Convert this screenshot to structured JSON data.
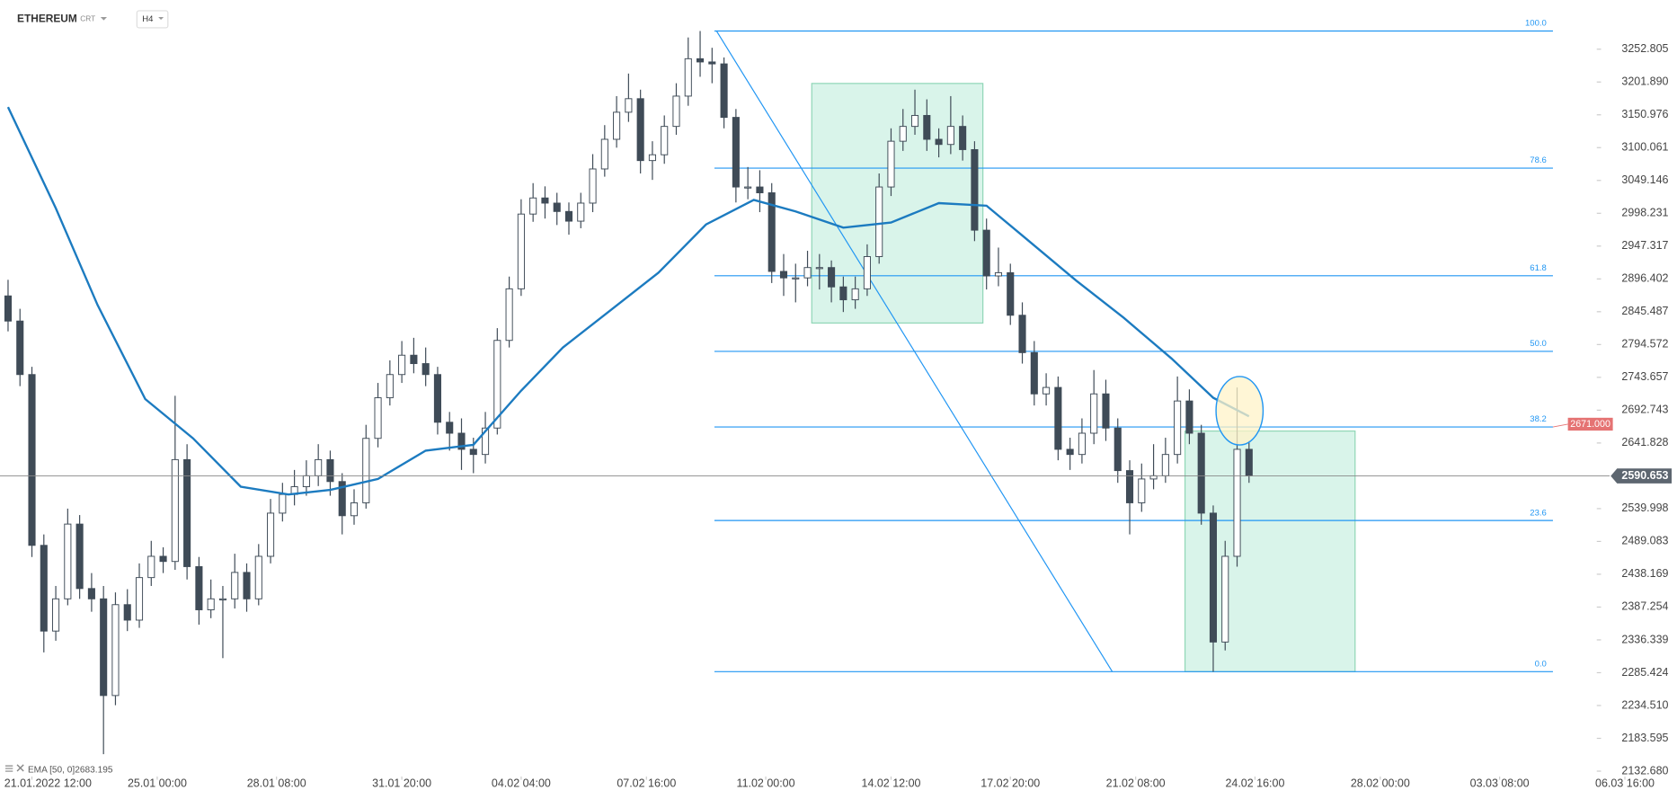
{
  "chart_data": {
    "type": "candlestick",
    "symbol": "ETHEREUM",
    "account": "CRT",
    "interval": "H4",
    "xlim": [
      -21.4,
      1047
    ],
    "ylim": [
      2109.4,
      3329.1
    ],
    "xticks": [
      {
        "value": 0,
        "label": "21.01.2022 12:00"
      },
      {
        "value": 84,
        "label": "25.01 00:00"
      },
      {
        "value": 164,
        "label": "28.01 08:00"
      },
      {
        "value": 248,
        "label": "31.01 20:00"
      },
      {
        "value": 328,
        "label": "04.02 04:00"
      },
      {
        "value": 412,
        "label": "07.02 16:00"
      },
      {
        "value": 492,
        "label": "11.02 00:00"
      },
      {
        "value": 576,
        "label": "14.02 12:00"
      },
      {
        "value": 656,
        "label": "17.02 20:00"
      },
      {
        "value": 740,
        "label": "21.02 08:00"
      },
      {
        "value": 820,
        "label": "24.02 16:00"
      },
      {
        "value": 904,
        "label": "28.02 00:00"
      },
      {
        "value": 984,
        "label": "03.03 08:00"
      },
      {
        "value": 1068,
        "label": "06.03 16:00"
      }
    ],
    "yticks": [
      3252.805,
      {
        "value": 3201.89,
        "label": "3201.890"
      },
      3150.976,
      3100.061,
      3049.146,
      2998.231,
      2947.317,
      2896.402,
      2845.487,
      2794.572,
      2743.657,
      2692.743,
      2641.828,
      2539.998,
      2489.083,
      2438.169,
      2387.254,
      2336.339,
      2285.424,
      {
        "value": 2234.51,
        "label": "2234.510"
      },
      2183.595,
      {
        "value": 2132.68,
        "label": "2132.680"
      }
    ],
    "last_price": 2590.653,
    "alert": {
      "value": 2671,
      "label": "2671.000"
    },
    "colors": {
      "up": "#ffffff",
      "down": "#3f4b57",
      "outline": "#3f4b57",
      "ema": "#1c7bc0",
      "fib": "#2196f3"
    },
    "x": [
      -16,
      -8,
      0,
      8,
      16,
      24,
      32,
      40,
      48,
      56,
      64,
      72,
      80,
      88,
      96,
      104,
      112,
      120,
      128,
      136,
      144,
      152,
      160,
      168,
      176,
      184,
      192,
      200,
      208,
      216,
      224,
      232,
      240,
      248,
      256,
      264,
      272,
      280,
      288,
      296,
      304,
      312,
      320,
      328,
      336,
      344,
      352,
      360,
      368,
      376,
      384,
      392,
      400,
      408,
      416,
      424,
      432,
      440,
      448,
      456,
      464,
      472,
      480,
      488,
      496,
      504,
      512,
      520,
      528,
      536,
      544,
      552,
      560,
      568,
      576,
      584,
      592,
      600,
      608,
      616,
      624,
      632,
      640,
      648,
      656,
      664,
      672,
      680,
      688,
      696,
      704,
      712,
      720,
      728,
      736,
      744,
      752,
      760,
      768,
      776,
      784,
      792,
      800,
      808,
      816
    ],
    "candles": [
      [
        2870,
        2895,
        2815,
        2831
      ],
      [
        2831,
        2850,
        2730,
        2748
      ],
      [
        2748,
        2760,
        2465,
        2483
      ],
      [
        2483,
        2500,
        2317,
        2350
      ],
      [
        2350,
        2420,
        2335,
        2400
      ],
      [
        2400,
        2540,
        2390,
        2516
      ],
      [
        2516,
        2530,
        2400,
        2416
      ],
      [
        2416,
        2440,
        2380,
        2400
      ],
      [
        2400,
        2420,
        2159,
        2250
      ],
      [
        2250,
        2410,
        2235,
        2391
      ],
      [
        2391,
        2415,
        2350,
        2367
      ],
      [
        2367,
        2455,
        2355,
        2433
      ],
      [
        2433,
        2490,
        2420,
        2466
      ],
      [
        2466,
        2480,
        2440,
        2458
      ],
      [
        2458,
        2715,
        2445,
        2616
      ],
      [
        2616,
        2640,
        2430,
        2450
      ],
      [
        2450,
        2465,
        2360,
        2383
      ],
      [
        2383,
        2430,
        2370,
        2400
      ],
      [
        2400,
        2420,
        2308,
        2400
      ],
      [
        2400,
        2470,
        2385,
        2441
      ],
      [
        2441,
        2455,
        2380,
        2400
      ],
      [
        2400,
        2485,
        2390,
        2466
      ],
      [
        2466,
        2555,
        2455,
        2533
      ],
      [
        2533,
        2580,
        2520,
        2562
      ],
      [
        2562,
        2600,
        2545,
        2574
      ],
      [
        2574,
        2615,
        2560,
        2591
      ],
      [
        2591,
        2640,
        2575,
        2616
      ],
      [
        2616,
        2630,
        2560,
        2582
      ],
      [
        2582,
        2595,
        2500,
        2529
      ],
      [
        2529,
        2570,
        2515,
        2549
      ],
      [
        2549,
        2670,
        2540,
        2649
      ],
      [
        2649,
        2735,
        2635,
        2712
      ],
      [
        2712,
        2770,
        2700,
        2748
      ],
      [
        2748,
        2800,
        2735,
        2778
      ],
      [
        2778,
        2805,
        2750,
        2765
      ],
      [
        2765,
        2790,
        2730,
        2748
      ],
      [
        2748,
        2760,
        2655,
        2674
      ],
      [
        2674,
        2690,
        2630,
        2657
      ],
      [
        2657,
        2680,
        2600,
        2632
      ],
      [
        2632,
        2650,
        2595,
        2624
      ],
      [
        2624,
        2690,
        2610,
        2665
      ],
      [
        2665,
        2820,
        2655,
        2801
      ],
      [
        2801,
        2900,
        2790,
        2881
      ],
      [
        2881,
        3020,
        2870,
        2997
      ],
      [
        2997,
        3045,
        2985,
        3022
      ],
      [
        3022,
        3040,
        2990,
        3014
      ],
      [
        3014,
        3030,
        2980,
        3001
      ],
      [
        3001,
        3015,
        2965,
        2986
      ],
      [
        2986,
        3030,
        2975,
        3014
      ],
      [
        3014,
        3090,
        3000,
        3067
      ],
      [
        3067,
        3135,
        3055,
        3113
      ],
      [
        3113,
        3180,
        3100,
        3155
      ],
      [
        3155,
        3215,
        3140,
        3176
      ],
      [
        3176,
        3190,
        3060,
        3080
      ],
      [
        3080,
        3110,
        3050,
        3089
      ],
      [
        3089,
        3150,
        3075,
        3133
      ],
      [
        3133,
        3200,
        3120,
        3180
      ],
      [
        3180,
        3271,
        3165,
        3238
      ],
      [
        3238,
        3281,
        3210,
        3233
      ],
      [
        3233,
        3255,
        3200,
        3230
      ],
      [
        3230,
        3240,
        3130,
        3147
      ],
      [
        3147,
        3160,
        3015,
        3039
      ],
      [
        3039,
        3070,
        3020,
        3039
      ],
      [
        3039,
        3065,
        3000,
        3030
      ],
      [
        3030,
        3045,
        2890,
        2908
      ],
      [
        2908,
        2935,
        2870,
        2898
      ],
      [
        2898,
        2920,
        2860,
        2898
      ],
      [
        2898,
        2940,
        2885,
        2914
      ],
      [
        2914,
        2935,
        2880,
        2914
      ],
      [
        2914,
        2925,
        2860,
        2884
      ],
      [
        2884,
        2900,
        2845,
        2864
      ],
      [
        2864,
        2900,
        2850,
        2881
      ],
      [
        2881,
        2950,
        2870,
        2931
      ],
      [
        2931,
        3060,
        2920,
        3039
      ],
      [
        3039,
        3130,
        3025,
        3110
      ],
      [
        3110,
        3160,
        3095,
        3133
      ],
      [
        3133,
        3190,
        3120,
        3150
      ],
      [
        3150,
        3175,
        3095,
        3113
      ],
      [
        3113,
        3130,
        3085,
        3105
      ],
      [
        3105,
        3180,
        3090,
        3133
      ],
      [
        3133,
        3150,
        3080,
        3097
      ],
      [
        3097,
        3110,
        2955,
        2972
      ],
      [
        2972,
        2990,
        2880,
        2901
      ],
      [
        2901,
        2945,
        2885,
        2906
      ],
      [
        2906,
        2920,
        2825,
        2840
      ],
      [
        2840,
        2860,
        2765,
        2782
      ],
      [
        2782,
        2800,
        2700,
        2718
      ],
      [
        2718,
        2750,
        2700,
        2728
      ],
      [
        2728,
        2745,
        2615,
        2632
      ],
      [
        2632,
        2650,
        2600,
        2624
      ],
      [
        2624,
        2680,
        2610,
        2657
      ],
      [
        2657,
        2755,
        2640,
        2718
      ],
      [
        2718,
        2740,
        2645,
        2665
      ],
      [
        2665,
        2680,
        2580,
        2599
      ],
      [
        2599,
        2615,
        2500,
        2549
      ],
      [
        2549,
        2610,
        2535,
        2586
      ],
      [
        2586,
        2640,
        2570,
        2591
      ],
      [
        2591,
        2650,
        2580,
        2624
      ],
      [
        2624,
        2745,
        2610,
        2707
      ],
      [
        2707,
        2725,
        2640,
        2657
      ],
      [
        2657,
        2670,
        2515,
        2533
      ],
      [
        2533,
        2545,
        2287,
        2333
      ],
      [
        2333,
        2490,
        2320,
        2466
      ],
      [
        2466,
        2728,
        2450,
        2632
      ],
      [
        2632,
        2645,
        2580,
        2591
      ]
    ],
    "ema": {
      "name": "EMA [50, 0]",
      "x": [
        -16,
        16,
        44,
        76,
        108,
        140,
        172,
        200,
        232,
        264,
        296,
        328,
        356,
        388,
        420,
        452,
        484,
        512,
        544,
        576,
        608,
        640,
        668,
        700,
        732,
        764,
        792,
        816
      ],
      "values": [
        3163,
        3006,
        2856,
        2710,
        2649,
        2574,
        2562,
        2569,
        2586,
        2630,
        2639,
        2723,
        2790,
        2848,
        2906,
        2981,
        3019,
        3001,
        2976,
        2984,
        3014,
        3010,
        2956,
        2894,
        2836,
        2773,
        2712,
        2683.195
      ]
    },
    "fib": {
      "high": 3281,
      "low": 2287,
      "levels": [
        {
          "value": 100,
          "label": "100.0"
        },
        {
          "value": 78.6,
          "label": "78.6"
        },
        {
          "value": 61.8,
          "label": "61.8"
        },
        {
          "value": 50,
          "label": "50.0"
        },
        {
          "value": 38.2,
          "label": "38.2"
        },
        {
          "value": 23.6,
          "label": "23.6"
        },
        {
          "value": 0,
          "label": "0.0"
        }
      ]
    }
  }
}
